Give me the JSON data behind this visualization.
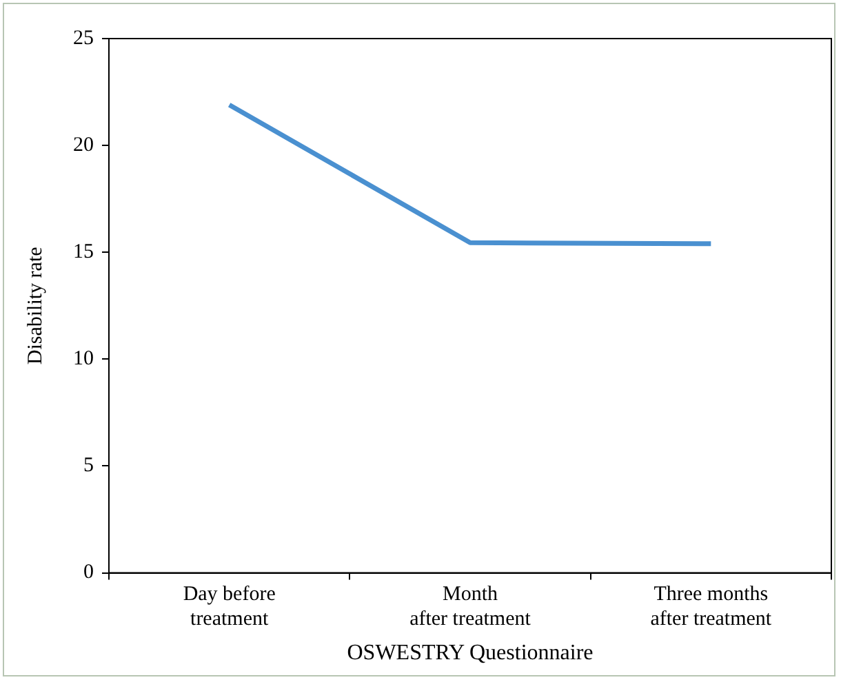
{
  "chart_data": {
    "type": "line",
    "xlabel": "OSWESTRY Questionnaire",
    "ylabel": "Disability rate",
    "categories": [
      "Day before treatment",
      "Month after treatment",
      "Three months after treatment"
    ],
    "series": [
      {
        "color": "#4a90d0",
        "values": [
          21.9,
          15.45,
          15.4
        ]
      }
    ],
    "ylim": [
      0,
      25
    ],
    "yticks": [
      0,
      5,
      10,
      15,
      20,
      25
    ],
    "grid": false,
    "legend": false,
    "marker": "none",
    "line_style": "solid"
  }
}
